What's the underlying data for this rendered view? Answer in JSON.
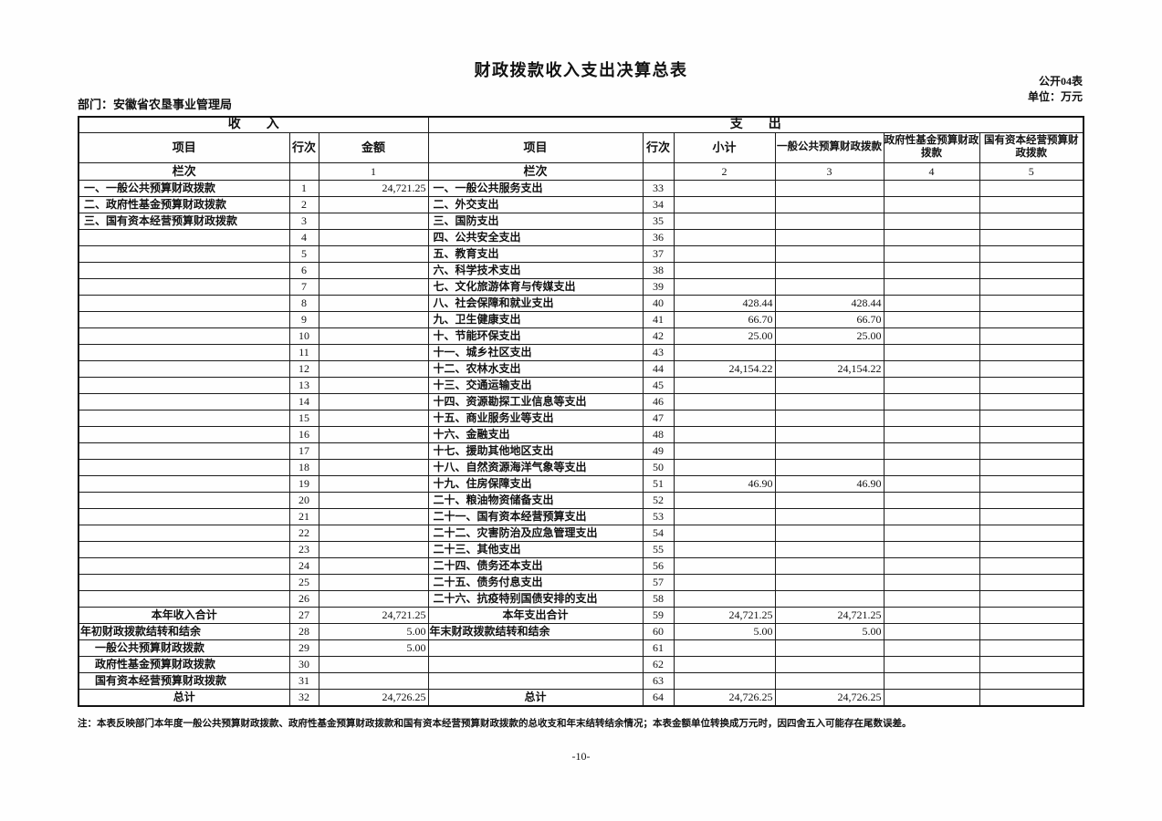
{
  "page": {
    "title": "财政拨款收入支出决算总表",
    "table_code": "公开04表",
    "unit": "单位：万元",
    "department": "部门：安徽省农垦事业管理局",
    "footnote": "注：本表反映部门本年度一般公共预算财政拨款、政府性基金预算财政拨款和国有资本经营预算财政拨款的总收支和年末结转结余情况；本表金额单位转换成万元时，因四舍五入可能存在尾数误差。",
    "page_number": "-10-"
  },
  "table": {
    "income_section": "收　　入",
    "expense_section": "支　　出",
    "lanci": "栏次",
    "income_columns": [
      "项目",
      "行次",
      "金额"
    ],
    "expense_columns": [
      "项目",
      "行次",
      "小计",
      "一般公共预算财政拨款",
      "政府性基金预算财政拨款",
      "国有资本经营预算财政拨款"
    ],
    "income_col_num": "1",
    "expense_col_nums": [
      "2",
      "3",
      "4",
      "5"
    ],
    "row_fields": [
      "income_item",
      "income_style",
      "income_line",
      "income_amount",
      "expense_item",
      "expense_style",
      "expense_line",
      "subtotal",
      "general_budget",
      "gov_fund",
      "state_capital"
    ],
    "rows": [
      [
        "一、一般公共预算财政拨款",
        "left",
        "1",
        "24,721.25",
        "一、一般公共服务支出",
        "left",
        "33",
        "",
        "",
        "",
        ""
      ],
      [
        "二、政府性基金预算财政拨款",
        "left",
        "2",
        "",
        "二、外交支出",
        "left",
        "34",
        "",
        "",
        "",
        ""
      ],
      [
        "三、国有资本经营预算财政拨款",
        "left",
        "3",
        "",
        "三、国防支出",
        "left",
        "35",
        "",
        "",
        "",
        ""
      ],
      [
        "",
        "left",
        "4",
        "",
        "四、公共安全支出",
        "left",
        "36",
        "",
        "",
        "",
        ""
      ],
      [
        "",
        "left",
        "5",
        "",
        "五、教育支出",
        "left",
        "37",
        "",
        "",
        "",
        ""
      ],
      [
        "",
        "left",
        "6",
        "",
        "六、科学技术支出",
        "left",
        "38",
        "",
        "",
        "",
        ""
      ],
      [
        "",
        "left",
        "7",
        "",
        "七、文化旅游体育与传媒支出",
        "left",
        "39",
        "",
        "",
        "",
        ""
      ],
      [
        "",
        "left",
        "8",
        "",
        "八、社会保障和就业支出",
        "left",
        "40",
        "428.44",
        "428.44",
        "",
        ""
      ],
      [
        "",
        "left",
        "9",
        "",
        "九、卫生健康支出",
        "left",
        "41",
        "66.70",
        "66.70",
        "",
        ""
      ],
      [
        "",
        "left",
        "10",
        "",
        "十、节能环保支出",
        "left",
        "42",
        "25.00",
        "25.00",
        "",
        ""
      ],
      [
        "",
        "left",
        "11",
        "",
        "十一、城乡社区支出",
        "left",
        "43",
        "",
        "",
        "",
        ""
      ],
      [
        "",
        "left",
        "12",
        "",
        "十二、农林水支出",
        "left",
        "44",
        "24,154.22",
        "24,154.22",
        "",
        ""
      ],
      [
        "",
        "left",
        "13",
        "",
        "十三、交通运输支出",
        "left",
        "45",
        "",
        "",
        "",
        ""
      ],
      [
        "",
        "left",
        "14",
        "",
        "十四、资源勘探工业信息等支出",
        "left",
        "46",
        "",
        "",
        "",
        ""
      ],
      [
        "",
        "left",
        "15",
        "",
        "十五、商业服务业等支出",
        "left",
        "47",
        "",
        "",
        "",
        ""
      ],
      [
        "",
        "left",
        "16",
        "",
        "十六、金融支出",
        "left",
        "48",
        "",
        "",
        "",
        ""
      ],
      [
        "",
        "left",
        "17",
        "",
        "十七、援助其他地区支出",
        "left",
        "49",
        "",
        "",
        "",
        ""
      ],
      [
        "",
        "left",
        "18",
        "",
        "十八、自然资源海洋气象等支出",
        "left",
        "50",
        "",
        "",
        "",
        ""
      ],
      [
        "",
        "left",
        "19",
        "",
        "十九、住房保障支出",
        "left",
        "51",
        "46.90",
        "46.90",
        "",
        ""
      ],
      [
        "",
        "left",
        "20",
        "",
        "二十、粮油物资储备支出",
        "left",
        "52",
        "",
        "",
        "",
        ""
      ],
      [
        "",
        "left",
        "21",
        "",
        "二十一、国有资本经营预算支出",
        "left",
        "53",
        "",
        "",
        "",
        ""
      ],
      [
        "",
        "left",
        "22",
        "",
        "二十二、灾害防治及应急管理支出",
        "left",
        "54",
        "",
        "",
        "",
        ""
      ],
      [
        "",
        "left",
        "23",
        "",
        "二十三、其他支出",
        "left",
        "55",
        "",
        "",
        "",
        ""
      ],
      [
        "",
        "left",
        "24",
        "",
        "二十四、债务还本支出",
        "left",
        "56",
        "",
        "",
        "",
        ""
      ],
      [
        "",
        "left",
        "25",
        "",
        "二十五、债务付息支出",
        "left",
        "57",
        "",
        "",
        "",
        ""
      ],
      [
        "",
        "left",
        "26",
        "",
        "二十六、抗疫特别国债安排的支出",
        "left",
        "58",
        "",
        "",
        "",
        ""
      ],
      [
        "本年收入合计",
        "center",
        "27",
        "24,721.25",
        "本年支出合计",
        "center",
        "59",
        "24,721.25",
        "24,721.25",
        "",
        ""
      ],
      [
        "年初财政拨款结转和结余",
        "flush",
        "28",
        "5.00",
        "年末财政拨款结转和结余",
        "flush",
        "60",
        "5.00",
        "5.00",
        "",
        ""
      ],
      [
        "一般公共预算财政拨款",
        "indent",
        "29",
        "5.00",
        "",
        "left",
        "61",
        "",
        "",
        "",
        ""
      ],
      [
        "政府性基金预算财政拨款",
        "indent",
        "30",
        "",
        "",
        "left",
        "62",
        "",
        "",
        "",
        ""
      ],
      [
        "国有资本经营预算财政拨款",
        "indent",
        "31",
        "",
        "",
        "left",
        "63",
        "",
        "",
        "",
        ""
      ],
      [
        "总计",
        "center",
        "32",
        "24,726.25",
        "总计",
        "center",
        "64",
        "24,726.25",
        "24,726.25",
        "",
        ""
      ]
    ]
  }
}
